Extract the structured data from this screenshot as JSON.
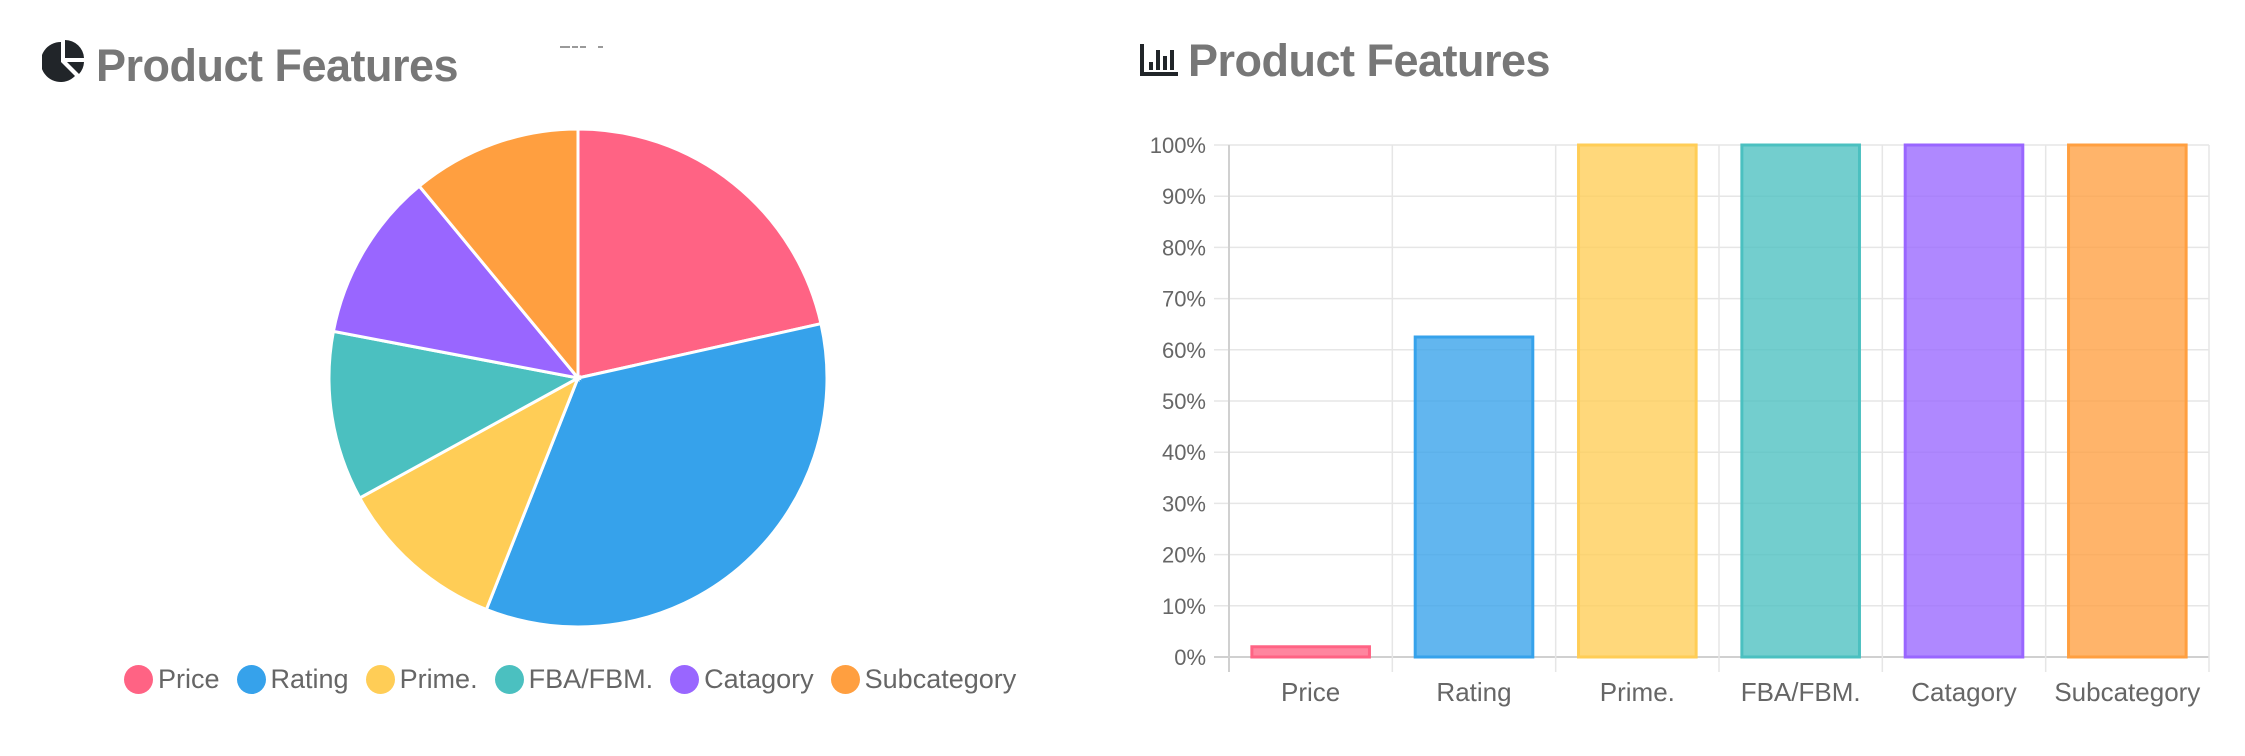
{
  "pie_panel": {
    "title": "Product Features",
    "icon": "pie-chart-icon",
    "legend": [
      {
        "label": "Price",
        "color": "#ff6384"
      },
      {
        "label": "Rating",
        "color": "#36a2eb"
      },
      {
        "label": "Prime.",
        "color": "#ffcd56"
      },
      {
        "label": "FBA/FBM.",
        "color": "#4bc0c0"
      },
      {
        "label": "Catagory",
        "color": "#9966ff"
      },
      {
        "label": "Subcategory",
        "color": "#ff9f40"
      }
    ]
  },
  "bar_panel": {
    "title": "Product Features",
    "icon": "bar-chart-icon"
  },
  "chart_data": [
    {
      "type": "pie",
      "title": "Product Features",
      "categories": [
        "Price",
        "Rating",
        "Prime.",
        "FBA/FBM.",
        "Catagory",
        "Subcategory"
      ],
      "values": [
        21.5,
        34.5,
        11.0,
        11.0,
        11.0,
        11.0
      ],
      "unit": "percent of pie (estimated from slice angles)",
      "colors": [
        "#ff6384",
        "#36a2eb",
        "#ffcd56",
        "#4bc0c0",
        "#9966ff",
        "#ff9f40"
      ],
      "legend_position": "bottom"
    },
    {
      "type": "bar",
      "title": "Product Features",
      "categories": [
        "Price",
        "Rating",
        "Prime.",
        "FBA/FBM.",
        "Catagory",
        "Subcategory"
      ],
      "values": [
        2,
        62.5,
        100,
        100,
        100,
        100
      ],
      "colors": [
        "#ff6384",
        "#36a2eb",
        "#ffcd56",
        "#4bc0c0",
        "#9966ff",
        "#ff9f40"
      ],
      "xlabel": "",
      "ylabel": "",
      "ylim": [
        0,
        100
      ],
      "yticks": [
        "0%",
        "10%",
        "20%",
        "30%",
        "40%",
        "50%",
        "60%",
        "70%",
        "80%",
        "90%",
        "100%"
      ],
      "grid": true,
      "legend": false
    }
  ]
}
